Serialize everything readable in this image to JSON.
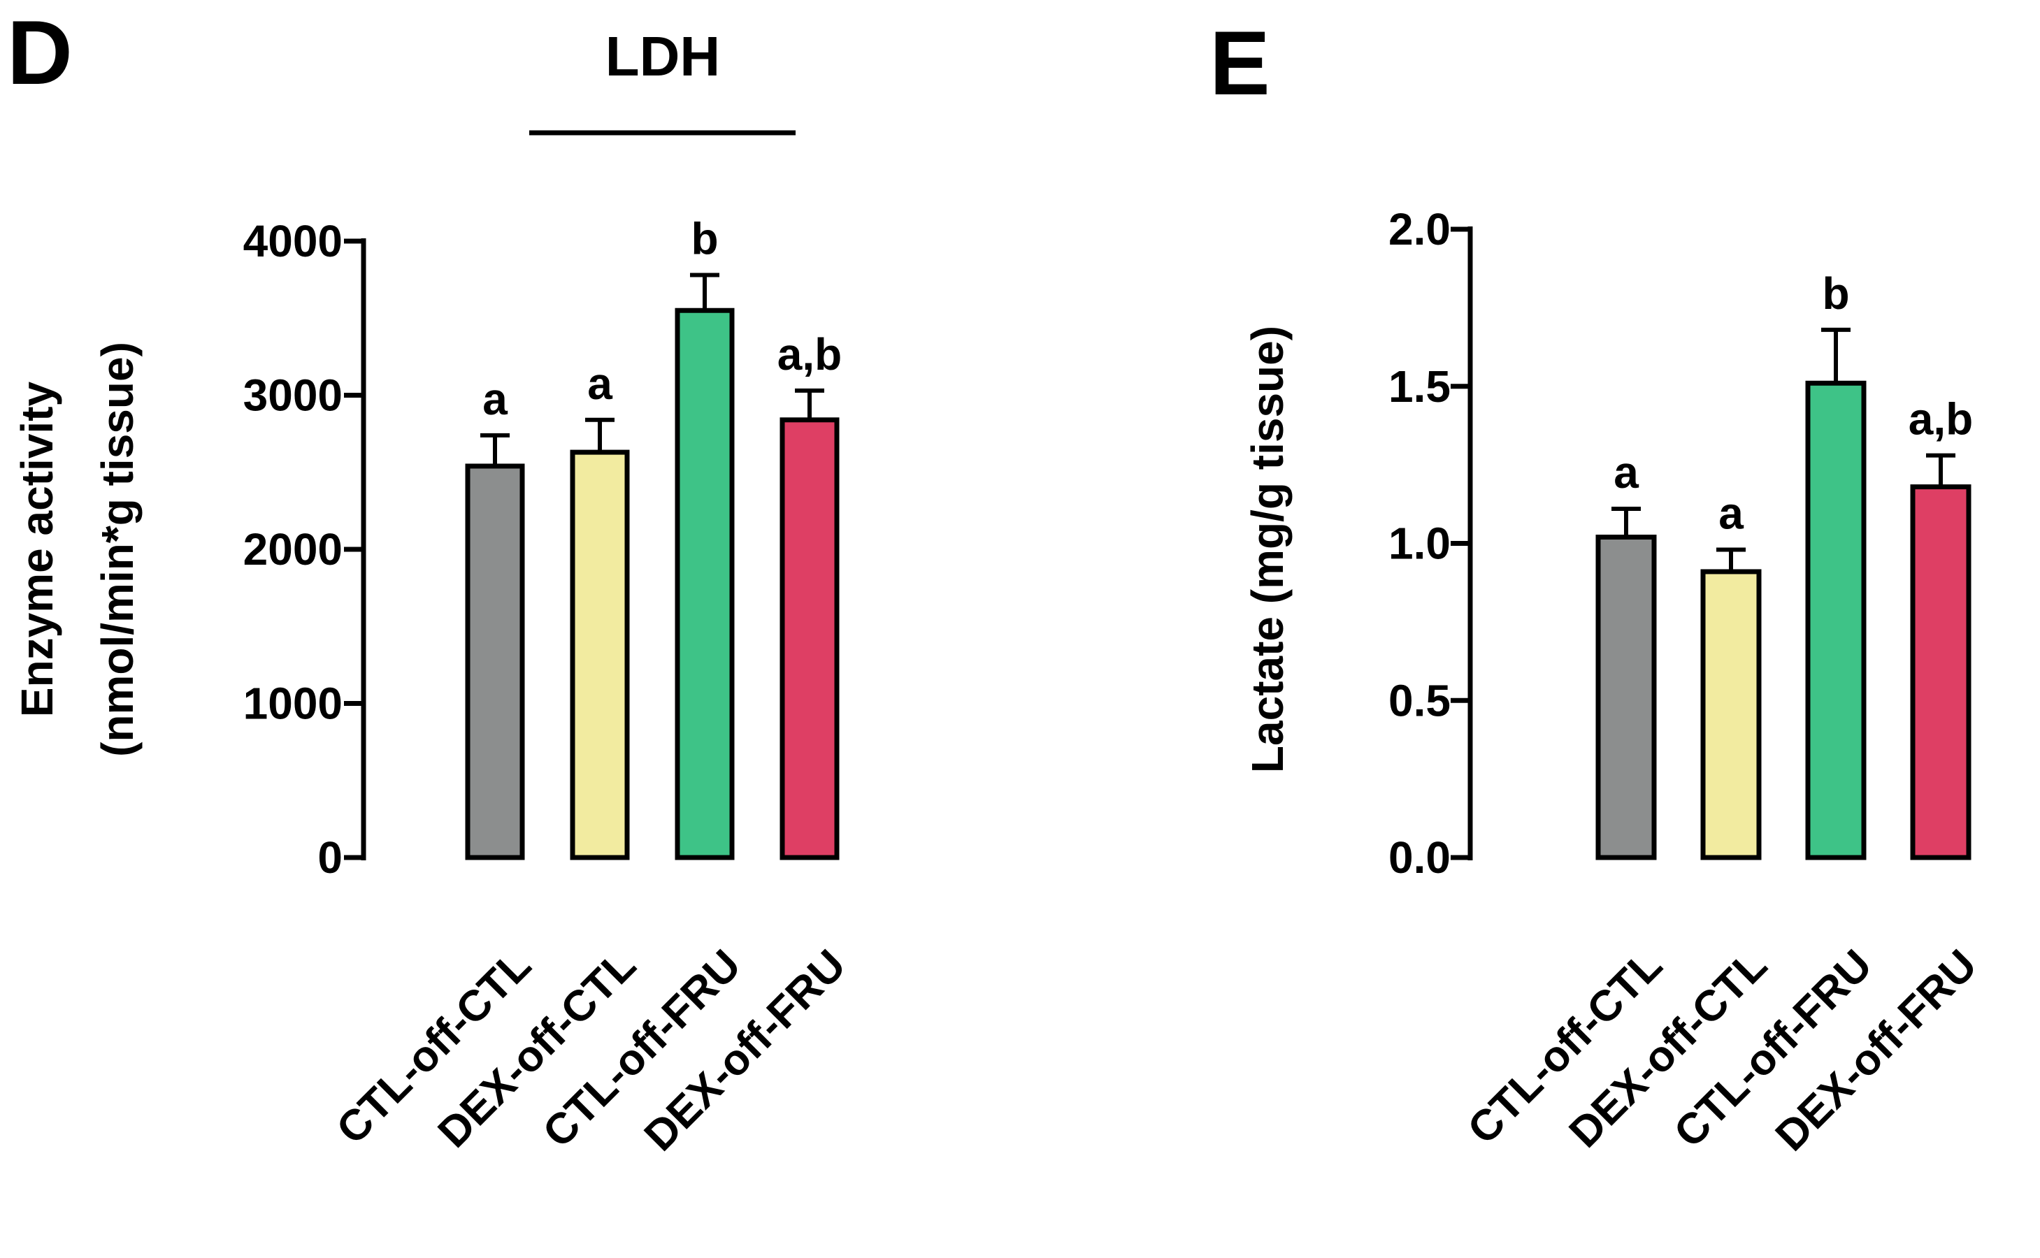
{
  "chart_data": [
    {
      "type": "bar",
      "panel_label": "D",
      "title": "LDH",
      "xlabel": "",
      "ylabel": [
        "Enzyme activity",
        "(nmol/min*g tissue)"
      ],
      "ylim": [
        0,
        4000
      ],
      "yticks": [
        0,
        1000,
        2000,
        3000,
        4000
      ],
      "ytick_labels": [
        "0",
        "1000",
        "2000",
        "3000",
        "4000"
      ],
      "categories": [
        "CTL-off-CTL",
        "DEX-off-CTL",
        "CTL-off-FRU",
        "DEX-off-FRU"
      ],
      "values": [
        2540,
        2630,
        3550,
        2840
      ],
      "errors": [
        200,
        210,
        230,
        190
      ],
      "significance_labels": [
        "a",
        "a",
        "b",
        "a,b"
      ],
      "grid": false
    },
    {
      "type": "bar",
      "panel_label": "E",
      "title": "",
      "xlabel": "",
      "ylabel": [
        "Lactate (mg/g tissue)"
      ],
      "ylim": [
        0,
        2.0
      ],
      "yticks": [
        0,
        0.5,
        1.0,
        1.5,
        2.0
      ],
      "ytick_labels": [
        "0.0",
        "0.5",
        "1.0",
        "1.5",
        "2.0"
      ],
      "categories": [
        "CTL-off-CTL",
        "DEX-off-CTL",
        "CTL-off-FRU",
        "DEX-off-FRU"
      ],
      "values": [
        1.02,
        0.91,
        1.51,
        1.18
      ],
      "errors": [
        0.09,
        0.07,
        0.17,
        0.1
      ],
      "significance_labels": [
        "a",
        "a",
        "b",
        "a,b"
      ],
      "grid": false
    }
  ],
  "colors": {
    "CTL-off-CTL": "#8c8e8e",
    "DEX-off-CTL": "#f2eba0",
    "CTL-off-FRU": "#3ec387",
    "DEX-off-FRU": "#de3f64",
    "axis": "#000000"
  }
}
